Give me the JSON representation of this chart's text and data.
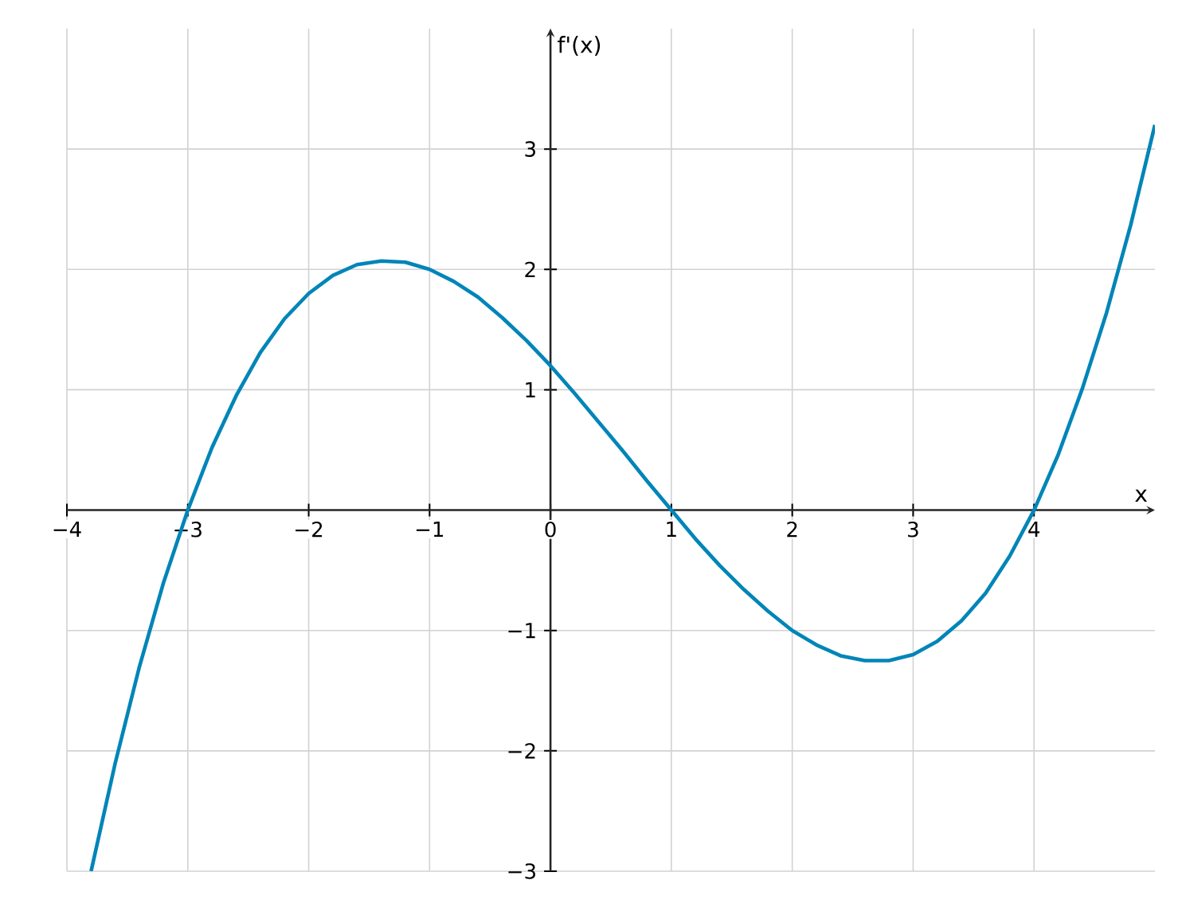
{
  "chart_data": {
    "type": "line",
    "xlabel": "x",
    "ylabel": "f'(x)",
    "xlim": [
      -4,
      5
    ],
    "ylim": [
      -3,
      4
    ],
    "xticks": [
      {
        "value": -4,
        "label": "−4"
      },
      {
        "value": -3,
        "label": "−3"
      },
      {
        "value": -2,
        "label": "−2"
      },
      {
        "value": -1,
        "label": "−1"
      },
      0,
      1,
      2,
      3,
      4
    ],
    "yticks": [
      {
        "value": -3,
        "label": "−3"
      },
      {
        "value": -2,
        "label": "−2"
      },
      {
        "value": -1,
        "label": "−1"
      },
      1,
      2,
      3
    ],
    "grid": true,
    "marker": "none",
    "line_style": "solid",
    "series": [
      {
        "color": "#0085b8",
        "x": [
          -3.8,
          -3.6,
          -3.4,
          -3.2,
          -3.0,
          -2.8,
          -2.6,
          -2.4,
          -2.2,
          -2.0,
          -1.8,
          -1.6,
          -1.4,
          -1.2,
          -1.0,
          -0.8,
          -0.6,
          -0.4,
          -0.2,
          0,
          0.2,
          0.4,
          0.6,
          0.8,
          1.0,
          1.2,
          1.4,
          1.6,
          1.8,
          2.0,
          2.2,
          2.4,
          2.6,
          2.8,
          3.0,
          3.2,
          3.4,
          3.6,
          3.8,
          4.0,
          4.2,
          4.4,
          4.6,
          4.8,
          5.0
        ],
        "values": [
          -3.0,
          -2.1,
          -1.3,
          -0.6,
          0,
          0.52,
          0.95,
          1.31,
          1.59,
          1.8,
          1.95,
          2.04,
          2.07,
          2.06,
          2.0,
          1.9,
          1.77,
          1.6,
          1.41,
          1.2,
          0.97,
          0.73,
          0.49,
          0.24,
          0,
          -0.24,
          -0.46,
          -0.66,
          -0.84,
          -1.0,
          -1.12,
          -1.21,
          -1.25,
          -1.25,
          -1.2,
          -1.09,
          -0.92,
          -0.69,
          -0.38,
          0,
          0.46,
          1.01,
          1.64,
          2.37,
          3.2
        ]
      }
    ]
  }
}
